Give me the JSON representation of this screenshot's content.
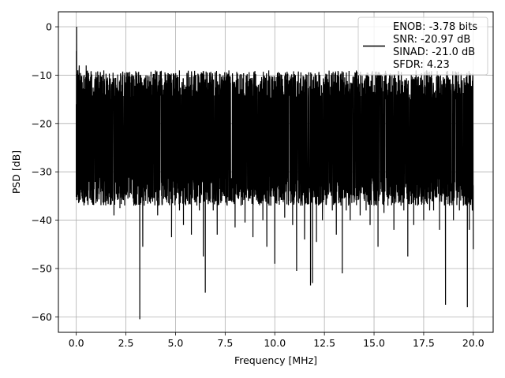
{
  "chart_data": {
    "type": "line",
    "xlabel": "Frequency [MHz]",
    "ylabel": "PSD [dB]",
    "xlim": [
      -0.9,
      21.0
    ],
    "ylim": [
      -63.2,
      3.1
    ],
    "x_ticks": [
      0.0,
      2.5,
      5.0,
      7.5,
      10.0,
      12.5,
      15.0,
      17.5,
      20.0
    ],
    "x_tick_labels": [
      "0.0",
      "2.5",
      "5.0",
      "7.5",
      "10.0",
      "12.5",
      "15.0",
      "17.5",
      "20.0"
    ],
    "y_ticks": [
      0,
      -10,
      -20,
      -30,
      -40,
      -50,
      -60
    ],
    "y_tick_labels": [
      "0",
      "−10",
      "−20",
      "−30",
      "−40",
      "−50",
      "−60"
    ],
    "grid": true,
    "legend_position": "top-right",
    "line_color": "#000000",
    "grid_color": "#b0b0b0",
    "series": [
      {
        "name": "ENOB: -3.78 bits\nSNR: -20.97 dB\nSINAD: -21.0 dB\nSFDR: 4.23",
        "legend_lines": [
          "ENOB: -3.78 bits",
          "SNR: -20.97 dB",
          "SINAD: -21.0 dB",
          "SFDR: 4.23"
        ],
        "x_range": [
          0.0,
          20.0
        ],
        "typical_upper": -12,
        "typical_lower": -34,
        "points": [
          [
            0.0,
            -16
          ],
          [
            0.01,
            -5
          ],
          [
            0.02,
            0
          ],
          [
            0.03,
            -12
          ],
          [
            0.05,
            -20
          ],
          [
            0.08,
            -9
          ],
          [
            0.1,
            -28
          ],
          [
            0.15,
            -8
          ],
          [
            0.2,
            -26
          ],
          [
            0.25,
            -11
          ],
          [
            0.3,
            -35.5
          ],
          [
            0.4,
            -10
          ],
          [
            0.45,
            -25
          ],
          [
            0.5,
            -8
          ],
          [
            0.55,
            -30
          ],
          [
            0.6,
            -12
          ],
          [
            0.7,
            -25
          ],
          [
            0.75,
            -13
          ],
          [
            0.8,
            -32
          ],
          [
            0.85,
            -14
          ],
          [
            0.9,
            -33
          ],
          [
            1.0,
            -11
          ],
          [
            1.05,
            -36
          ],
          [
            1.1,
            -13
          ],
          [
            1.15,
            -31
          ],
          [
            1.2,
            -12
          ],
          [
            1.25,
            -33
          ],
          [
            1.3,
            -13
          ],
          [
            1.4,
            -32
          ],
          [
            1.45,
            -14
          ],
          [
            1.5,
            -35
          ],
          [
            1.6,
            -12
          ],
          [
            1.7,
            -34
          ],
          [
            1.8,
            -13
          ],
          [
            1.9,
            -39
          ],
          [
            2.0,
            -12
          ],
          [
            2.05,
            -33
          ],
          [
            2.1,
            -13
          ],
          [
            2.2,
            -37.5
          ],
          [
            2.3,
            -12
          ],
          [
            2.4,
            -31
          ],
          [
            2.5,
            -13
          ],
          [
            2.55,
            -34
          ],
          [
            2.6,
            -12
          ],
          [
            2.7,
            -31
          ],
          [
            2.8,
            -14
          ],
          [
            2.9,
            -37
          ],
          [
            3.0,
            -13
          ],
          [
            3.1,
            -33
          ],
          [
            3.15,
            -12
          ],
          [
            3.2,
            -60.5
          ],
          [
            3.25,
            -14
          ],
          [
            3.35,
            -45.5
          ],
          [
            3.4,
            -12
          ],
          [
            3.5,
            -36
          ],
          [
            3.6,
            -14
          ],
          [
            3.75,
            -35
          ],
          [
            3.8,
            -12
          ],
          [
            3.95,
            -32
          ],
          [
            4.0,
            -13
          ],
          [
            4.1,
            -39
          ],
          [
            4.2,
            -15
          ],
          [
            4.3,
            -35
          ],
          [
            4.4,
            -13
          ],
          [
            4.5,
            -31
          ],
          [
            4.6,
            -14
          ],
          [
            4.7,
            -33
          ],
          [
            4.75,
            -14
          ],
          [
            4.8,
            -43.5
          ],
          [
            4.9,
            -13
          ],
          [
            5.0,
            -35
          ],
          [
            5.1,
            -13
          ],
          [
            5.2,
            -38
          ],
          [
            5.3,
            -14
          ],
          [
            5.4,
            -41
          ],
          [
            5.5,
            -13
          ],
          [
            5.6,
            -36
          ],
          [
            5.7,
            -15
          ],
          [
            5.8,
            -43
          ],
          [
            5.9,
            -13
          ],
          [
            6.0,
            -36
          ],
          [
            6.1,
            -14
          ],
          [
            6.2,
            -38
          ],
          [
            6.3,
            -14
          ],
          [
            6.4,
            -47.5
          ],
          [
            6.45,
            -15
          ],
          [
            6.5,
            -55
          ],
          [
            6.6,
            -13
          ],
          [
            6.7,
            -36
          ],
          [
            6.8,
            -14
          ],
          [
            6.9,
            -38
          ],
          [
            7.0,
            -13
          ],
          [
            7.1,
            -43
          ],
          [
            7.2,
            -15
          ],
          [
            7.4,
            -35
          ],
          [
            7.5,
            -13
          ],
          [
            7.6,
            -37
          ],
          [
            7.7,
            -15
          ],
          [
            7.8,
            -36
          ],
          [
            7.9,
            -14
          ],
          [
            8.0,
            -41.5
          ],
          [
            8.1,
            -14
          ],
          [
            8.3,
            -37
          ],
          [
            8.4,
            -14
          ],
          [
            8.5,
            -40.5
          ],
          [
            8.6,
            -14
          ],
          [
            8.7,
            -35
          ],
          [
            8.8,
            -14
          ],
          [
            8.9,
            -43.5
          ],
          [
            9.0,
            -13
          ],
          [
            9.2,
            -35
          ],
          [
            9.3,
            -14
          ],
          [
            9.4,
            -40
          ],
          [
            9.5,
            -15
          ],
          [
            9.6,
            -45.5
          ],
          [
            9.7,
            -13
          ],
          [
            9.8,
            -37
          ],
          [
            9.9,
            -13
          ],
          [
            10.0,
            -49
          ],
          [
            10.1,
            -14
          ],
          [
            10.2,
            -36
          ],
          [
            10.3,
            -14
          ],
          [
            10.5,
            -39.5
          ],
          [
            10.6,
            -14
          ],
          [
            10.7,
            -36
          ],
          [
            10.8,
            -14
          ],
          [
            10.9,
            -41
          ],
          [
            11.0,
            -14
          ],
          [
            11.1,
            -50.5
          ],
          [
            11.2,
            -14
          ],
          [
            11.3,
            -37
          ],
          [
            11.4,
            -14
          ],
          [
            11.5,
            -44
          ],
          [
            11.6,
            -14
          ],
          [
            11.8,
            -53.5
          ],
          [
            11.85,
            -14
          ],
          [
            11.9,
            -53
          ],
          [
            12.0,
            -15
          ],
          [
            12.1,
            -44.5
          ],
          [
            12.2,
            -14
          ],
          [
            12.4,
            -40
          ],
          [
            12.5,
            -14
          ],
          [
            12.6,
            -36
          ],
          [
            12.7,
            -14
          ],
          [
            12.9,
            -38
          ],
          [
            13.0,
            -15
          ],
          [
            13.1,
            -43
          ],
          [
            13.2,
            -14
          ],
          [
            13.4,
            -51
          ],
          [
            13.5,
            -14
          ],
          [
            13.6,
            -38
          ],
          [
            13.7,
            -15
          ],
          [
            13.8,
            -40
          ],
          [
            13.9,
            -14
          ],
          [
            14.0,
            -36
          ],
          [
            14.1,
            -15
          ],
          [
            14.3,
            -39
          ],
          [
            14.4,
            -14
          ],
          [
            14.6,
            -38
          ],
          [
            14.7,
            -14
          ],
          [
            14.8,
            -41
          ],
          [
            14.9,
            -15
          ],
          [
            15.0,
            -37
          ],
          [
            15.1,
            -14
          ],
          [
            15.2,
            -45.5
          ],
          [
            15.3,
            -14
          ],
          [
            15.5,
            -38.5
          ],
          [
            15.6,
            -15
          ],
          [
            15.7,
            -37
          ],
          [
            15.8,
            -14
          ],
          [
            16.0,
            -42
          ],
          [
            16.1,
            -14
          ],
          [
            16.3,
            -36
          ],
          [
            16.4,
            -14
          ],
          [
            16.5,
            -38
          ],
          [
            16.6,
            -15
          ],
          [
            16.7,
            -47.5
          ],
          [
            16.8,
            -14
          ],
          [
            17.0,
            -41
          ],
          [
            17.1,
            -15
          ],
          [
            17.2,
            -37
          ],
          [
            17.3,
            -14
          ],
          [
            17.5,
            -40
          ],
          [
            17.6,
            -15
          ],
          [
            17.8,
            -38
          ],
          [
            17.9,
            -14
          ],
          [
            18.0,
            -38
          ],
          [
            18.1,
            -15
          ],
          [
            18.3,
            -42
          ],
          [
            18.4,
            -14
          ],
          [
            18.6,
            -57.5
          ],
          [
            18.7,
            -15
          ],
          [
            18.8,
            -37
          ],
          [
            18.9,
            -14
          ],
          [
            19.0,
            -40
          ],
          [
            19.1,
            -15
          ],
          [
            19.3,
            -38
          ],
          [
            19.4,
            -14
          ],
          [
            19.5,
            -37
          ],
          [
            19.6,
            -15
          ],
          [
            19.7,
            -58
          ],
          [
            19.75,
            -15
          ],
          [
            19.8,
            -42
          ],
          [
            19.9,
            -17
          ],
          [
            19.95,
            -38
          ],
          [
            20.0,
            -46
          ]
        ]
      }
    ]
  }
}
